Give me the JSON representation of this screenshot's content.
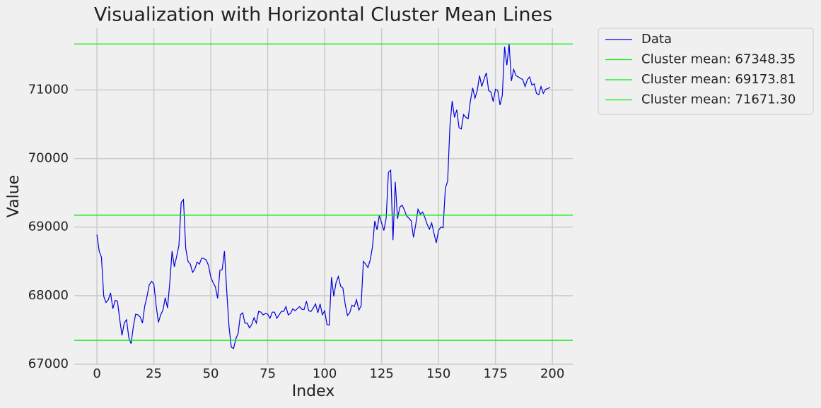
{
  "chart_data": {
    "type": "line",
    "title": "Visualization with Horizontal Cluster Mean Lines",
    "x_label": "Index",
    "y_label": "Value",
    "x": [
      0,
      1,
      2,
      3,
      4,
      5,
      6,
      7,
      8,
      9,
      10,
      11,
      12,
      13,
      14,
      15,
      16,
      17,
      18,
      19,
      20,
      21,
      22,
      23,
      24,
      25,
      26,
      27,
      28,
      29,
      30,
      31,
      32,
      33,
      34,
      35,
      36,
      37,
      38,
      39,
      40,
      41,
      42,
      43,
      44,
      45,
      46,
      47,
      48,
      49,
      50,
      51,
      52,
      53,
      54,
      55,
      56,
      57,
      58,
      59,
      60,
      61,
      62,
      63,
      64,
      65,
      66,
      67,
      68,
      69,
      70,
      71,
      72,
      73,
      74,
      75,
      76,
      77,
      78,
      79,
      80,
      81,
      82,
      83,
      84,
      85,
      86,
      87,
      88,
      89,
      90,
      91,
      92,
      93,
      94,
      95,
      96,
      97,
      98,
      99,
      100,
      101,
      102,
      103,
      104,
      105,
      106,
      107,
      108,
      109,
      110,
      111,
      112,
      113,
      114,
      115,
      116,
      117,
      118,
      119,
      120,
      121,
      122,
      123,
      124,
      125,
      126,
      127,
      128,
      129,
      130,
      131,
      132,
      133,
      134,
      135,
      136,
      137,
      138,
      139,
      140,
      141,
      142,
      143,
      144,
      145,
      146,
      147,
      148,
      149,
      150,
      151,
      152,
      153,
      154,
      155,
      156,
      157,
      158,
      159,
      160,
      161,
      162,
      163,
      164,
      165,
      166,
      167,
      168,
      169,
      170,
      171,
      172,
      173,
      174,
      175,
      176,
      177,
      178,
      179,
      180,
      181,
      182,
      183,
      184,
      185,
      186,
      187,
      188,
      189,
      190,
      191,
      192,
      193,
      194,
      195,
      196,
      197,
      198,
      199
    ],
    "series": [
      {
        "name": "Data",
        "color": "#0000dd",
        "values": [
          68890,
          68650,
          68560,
          67990,
          67900,
          67940,
          68040,
          67810,
          67930,
          67920,
          67660,
          67420,
          67600,
          67650,
          67390,
          67300,
          67550,
          67730,
          67720,
          67690,
          67600,
          67850,
          67990,
          68160,
          68210,
          68170,
          67860,
          67610,
          67720,
          67790,
          67970,
          67820,
          68190,
          68650,
          68420,
          68570,
          68730,
          69360,
          69400,
          68690,
          68500,
          68460,
          68340,
          68390,
          68490,
          68460,
          68550,
          68540,
          68520,
          68440,
          68270,
          68190,
          68130,
          67960,
          68370,
          68380,
          68650,
          68070,
          67550,
          67250,
          67230,
          67370,
          67450,
          67720,
          67750,
          67600,
          67600,
          67530,
          67580,
          67680,
          67600,
          67770,
          67760,
          67720,
          67740,
          67730,
          67670,
          67760,
          67760,
          67670,
          67720,
          67770,
          67770,
          67840,
          67720,
          67740,
          67810,
          67780,
          67810,
          67840,
          67800,
          67800,
          67920,
          67780,
          67770,
          67820,
          67880,
          67750,
          67880,
          67720,
          67780,
          67580,
          67570,
          68270,
          67990,
          68190,
          68280,
          68140,
          68110,
          67880,
          67710,
          67750,
          67860,
          67840,
          67940,
          67790,
          67850,
          68500,
          68460,
          68410,
          68520,
          68710,
          69090,
          68960,
          69170,
          69060,
          68950,
          69130,
          69800,
          69830,
          68810,
          69660,
          69120,
          69290,
          69320,
          69250,
          69160,
          69130,
          69090,
          68850,
          69040,
          69260,
          69190,
          69220,
          69140,
          69040,
          68970,
          69060,
          68910,
          68770,
          68950,
          69000,
          68990,
          69570,
          69670,
          70470,
          70840,
          70600,
          70710,
          70450,
          70430,
          70640,
          70600,
          70580,
          70840,
          71030,
          70880,
          70990,
          71210,
          71050,
          71160,
          71250,
          70990,
          70970,
          70830,
          71010,
          70990,
          70780,
          70920,
          71630,
          71360,
          71670,
          71130,
          71300,
          71210,
          71190,
          71170,
          71150,
          71050,
          71150,
          71190,
          71070,
          71090,
          70950,
          70930,
          71050,
          70950,
          71010,
          71020,
          71040
        ]
      }
    ],
    "hlines": [
      {
        "label": "Cluster mean: 67348.35",
        "value": 67348.35,
        "color": "#00ee00"
      },
      {
        "label": "Cluster mean: 69173.81",
        "value": 69173.81,
        "color": "#00ee00"
      },
      {
        "label": "Cluster mean: 71671.30",
        "value": 71671.3,
        "color": "#00ee00"
      }
    ],
    "xlim": [
      -9.95,
      208.95
    ],
    "ylim": [
      67000,
      71900
    ],
    "xticks": [
      0,
      25,
      50,
      75,
      100,
      125,
      150,
      175,
      200
    ],
    "yticks": [
      67000,
      68000,
      69000,
      70000,
      71000
    ],
    "grid": true,
    "legend": "outside-upper-right"
  }
}
